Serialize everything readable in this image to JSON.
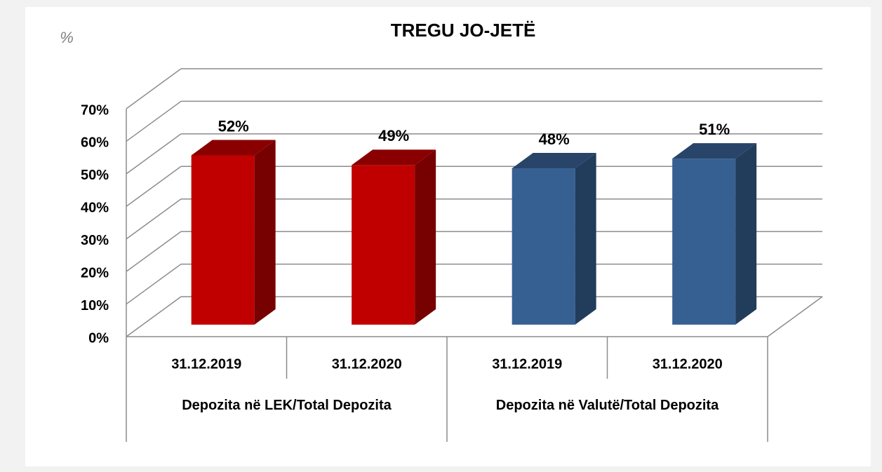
{
  "chart_data": {
    "type": "bar3d",
    "title": "TREGU JO-JETË",
    "unit_label": "%",
    "categories": [
      "31.12.2019",
      "31.12.2020",
      "31.12.2019",
      "31.12.2020"
    ],
    "groups": [
      "Depozita në LEK/Total Depozita",
      "Depozita në Valutë/Total Depozita"
    ],
    "values": [
      52,
      49,
      48,
      51
    ],
    "value_labels": [
      "52%",
      "49%",
      "48%",
      "51%"
    ],
    "colors": [
      "#c00000",
      "#c00000",
      "#376092",
      "#376092"
    ],
    "ylim": [
      0,
      70
    ],
    "yticks": [
      {
        "value": 0,
        "label": "0%"
      },
      {
        "value": 10,
        "label": "10%"
      },
      {
        "value": 20,
        "label": "20%"
      },
      {
        "value": 30,
        "label": "30%"
      },
      {
        "value": 40,
        "label": "40%"
      },
      {
        "value": 50,
        "label": "50%"
      },
      {
        "value": 60,
        "label": "60%"
      },
      {
        "value": 70,
        "label": "70%"
      }
    ],
    "grid": true
  }
}
